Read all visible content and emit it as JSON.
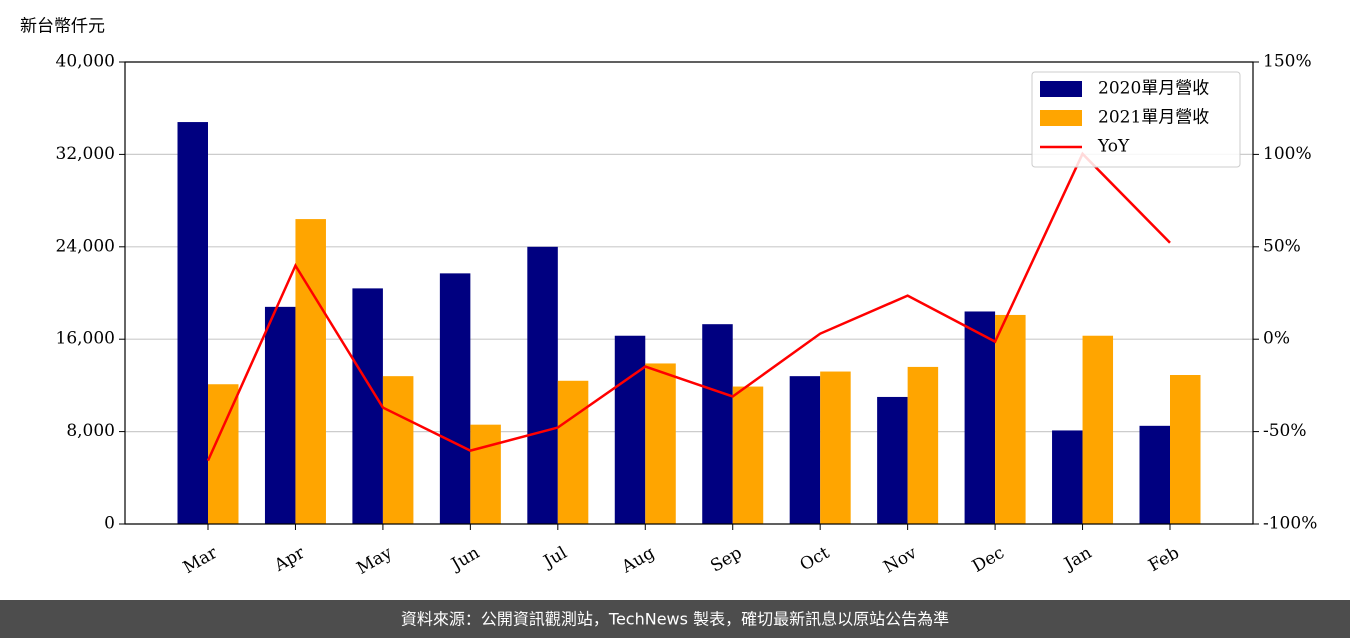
{
  "chart_data": {
    "type": "bar",
    "y_label": "新台幣仟元",
    "categories": [
      "Mar",
      "Apr",
      "May",
      "Jun",
      "Jul",
      "Aug",
      "Sep",
      "Oct",
      "Nov",
      "Dec",
      "Jan",
      "Feb"
    ],
    "series": [
      {
        "name": "2020單月營收",
        "color": "#000080",
        "values": [
          34800,
          18800,
          20400,
          21700,
          24000,
          16300,
          17300,
          12800,
          11000,
          18400,
          8100,
          8500
        ]
      },
      {
        "name": "2021單月營收",
        "color": "#ffa500",
        "values": [
          12100,
          26400,
          12800,
          8600,
          12400,
          13900,
          11900,
          13200,
          13600,
          18100,
          16300,
          12900
        ]
      },
      {
        "name": "YoY",
        "color": "#ff0000",
        "type": "line",
        "axis": "y2",
        "values": [
          -65.7,
          39.8,
          -37,
          -60.3,
          -47.8,
          -14.8,
          -31,
          3,
          23.6,
          -1.3,
          100.3,
          52.2
        ]
      }
    ],
    "ylim": [
      0,
      40000
    ],
    "yticks": [
      0,
      {
        "value": 8000,
        "label": "8,000"
      },
      {
        "value": 16000,
        "label": "16,000"
      },
      {
        "value": 24000,
        "label": "24,000"
      },
      {
        "value": 32000,
        "label": "32,000"
      },
      {
        "value": 40000,
        "label": "40,000"
      }
    ],
    "y2lim": [
      -100,
      150
    ],
    "y2ticks": [
      {
        "value": -100,
        "label": "-100%"
      },
      {
        "value": -50,
        "label": "-50%"
      },
      {
        "value": 0,
        "label": "0%"
      },
      {
        "value": 50,
        "label": "50%"
      },
      {
        "value": 100,
        "label": "100%"
      },
      {
        "value": 150,
        "label": "150%"
      }
    ],
    "grid": true,
    "legend": "upper right",
    "footer": "資料來源：公開資訊觀測站，TechNews 製表，確切最新訊息以原站公告為準"
  }
}
